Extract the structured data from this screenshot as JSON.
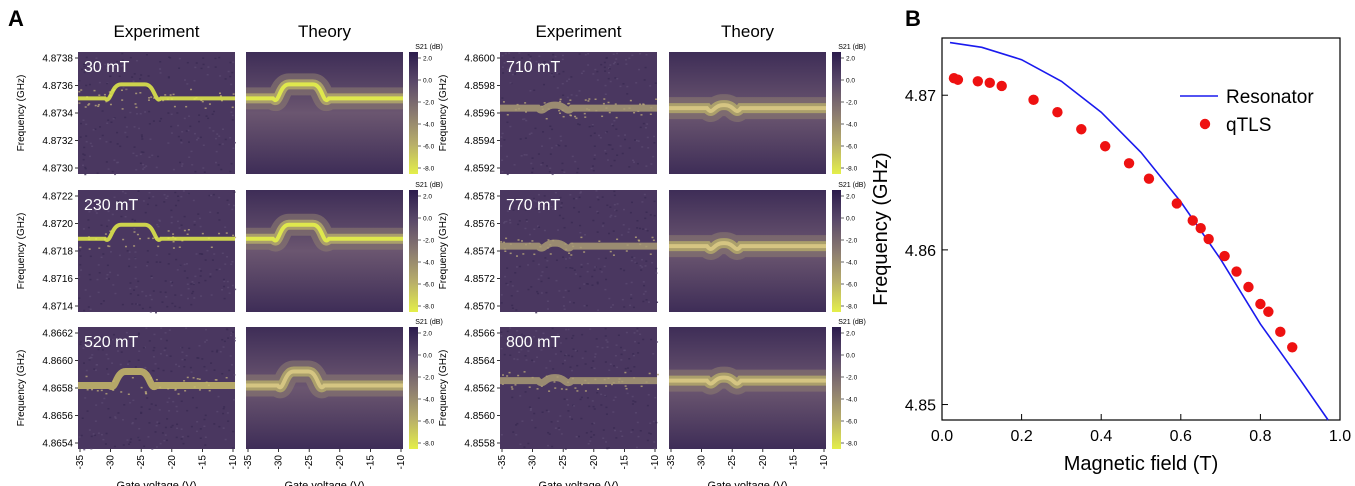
{
  "panels": {
    "a": "A",
    "b": "B"
  },
  "heatmap_grid": {
    "columns": [
      "Experiment",
      "Theory",
      "Experiment",
      "Theory"
    ],
    "ylabel": "Frequency (GHz)",
    "xlabel": "Gate voltage (V)",
    "xticks": [
      "-35",
      "-30",
      "-25",
      "-20",
      "-15",
      "-10"
    ],
    "colorbar_title": "S21 (dB)",
    "colorbar_ticks": [
      "2.0",
      "0.0",
      "-2.0",
      "-4.0",
      "-6.0",
      "-8.0"
    ],
    "colorbar_stops": [
      "#2b1b4c",
      "#5b4a6a",
      "#8a7a70",
      "#b7ad6a",
      "#e4ef4a"
    ],
    "bg_color": "#4a3760",
    "rows": [
      {
        "field": "30 mT",
        "yticks": [
          "4.8738",
          "4.8736",
          "4.8734",
          "4.8732",
          "4.8730"
        ],
        "resonance_frac": 0.38,
        "dip": "wide"
      },
      {
        "field": "230 mT",
        "yticks": [
          "4.8722",
          "4.8720",
          "4.8718",
          "4.8716",
          "4.8714"
        ],
        "resonance_frac": 0.4,
        "dip": "wide"
      },
      {
        "field": "520 mT",
        "yticks": [
          "4.8662",
          "4.8660",
          "4.8658",
          "4.8656",
          "4.8654"
        ],
        "resonance_frac": 0.48,
        "dip": "narrow"
      },
      {
        "field": "710 mT",
        "yticks": [
          "4.8600",
          "4.8598",
          "4.8596",
          "4.8594",
          "4.8592"
        ],
        "resonance_frac": 0.46,
        "dip": "small"
      },
      {
        "field": "770 mT",
        "yticks": [
          "4.8578",
          "4.8576",
          "4.8574",
          "4.8572",
          "4.8570"
        ],
        "resonance_frac": 0.46,
        "dip": "small"
      },
      {
        "field": "800 mT",
        "yticks": [
          "4.8566",
          "4.8564",
          "4.8562",
          "4.8560",
          "4.8558"
        ],
        "resonance_frac": 0.44,
        "dip": "small"
      }
    ]
  },
  "chart_data": {
    "type": "scatter",
    "xlabel": "Magnetic field (T)",
    "ylabel": "Frequency (GHz)",
    "xlim": [
      0.0,
      1.0
    ],
    "ylim": [
      4.849,
      4.8737
    ],
    "xticks": [
      "0.0",
      "0.2",
      "0.4",
      "0.6",
      "0.8",
      "1.0"
    ],
    "xtick_values": [
      0.0,
      0.2,
      0.4,
      0.6,
      0.8,
      1.0
    ],
    "yticks": [
      "4.85",
      "4.86",
      "4.87"
    ],
    "ytick_values": [
      4.85,
      4.86,
      4.87
    ],
    "legend_position": "top-right",
    "series": [
      {
        "name": "Resonator",
        "kind": "line",
        "color": "#1a1aee",
        "x": [
          0.02,
          0.1,
          0.2,
          0.3,
          0.4,
          0.5,
          0.6,
          0.7,
          0.8,
          0.9,
          0.97
        ],
        "y": [
          4.8734,
          4.8731,
          4.8723,
          4.8709,
          4.8689,
          4.8663,
          4.8631,
          4.8594,
          4.8552,
          4.8516,
          4.849
        ]
      },
      {
        "name": "qTLS",
        "kind": "scatter",
        "color": "#ee1111",
        "x": [
          0.03,
          0.04,
          0.09,
          0.12,
          0.15,
          0.23,
          0.29,
          0.35,
          0.41,
          0.47,
          0.52,
          0.59,
          0.63,
          0.65,
          0.67,
          0.71,
          0.74,
          0.77,
          0.8,
          0.82,
          0.85,
          0.88
        ],
        "y": [
          4.8711,
          4.871,
          4.8709,
          4.8708,
          4.8706,
          4.8697,
          4.8689,
          4.8678,
          4.8667,
          4.8656,
          4.8646,
          4.863,
          4.8619,
          4.8614,
          4.8607,
          4.8596,
          4.8586,
          4.8576,
          4.8565,
          4.856,
          4.8547,
          4.8537
        ]
      }
    ]
  }
}
